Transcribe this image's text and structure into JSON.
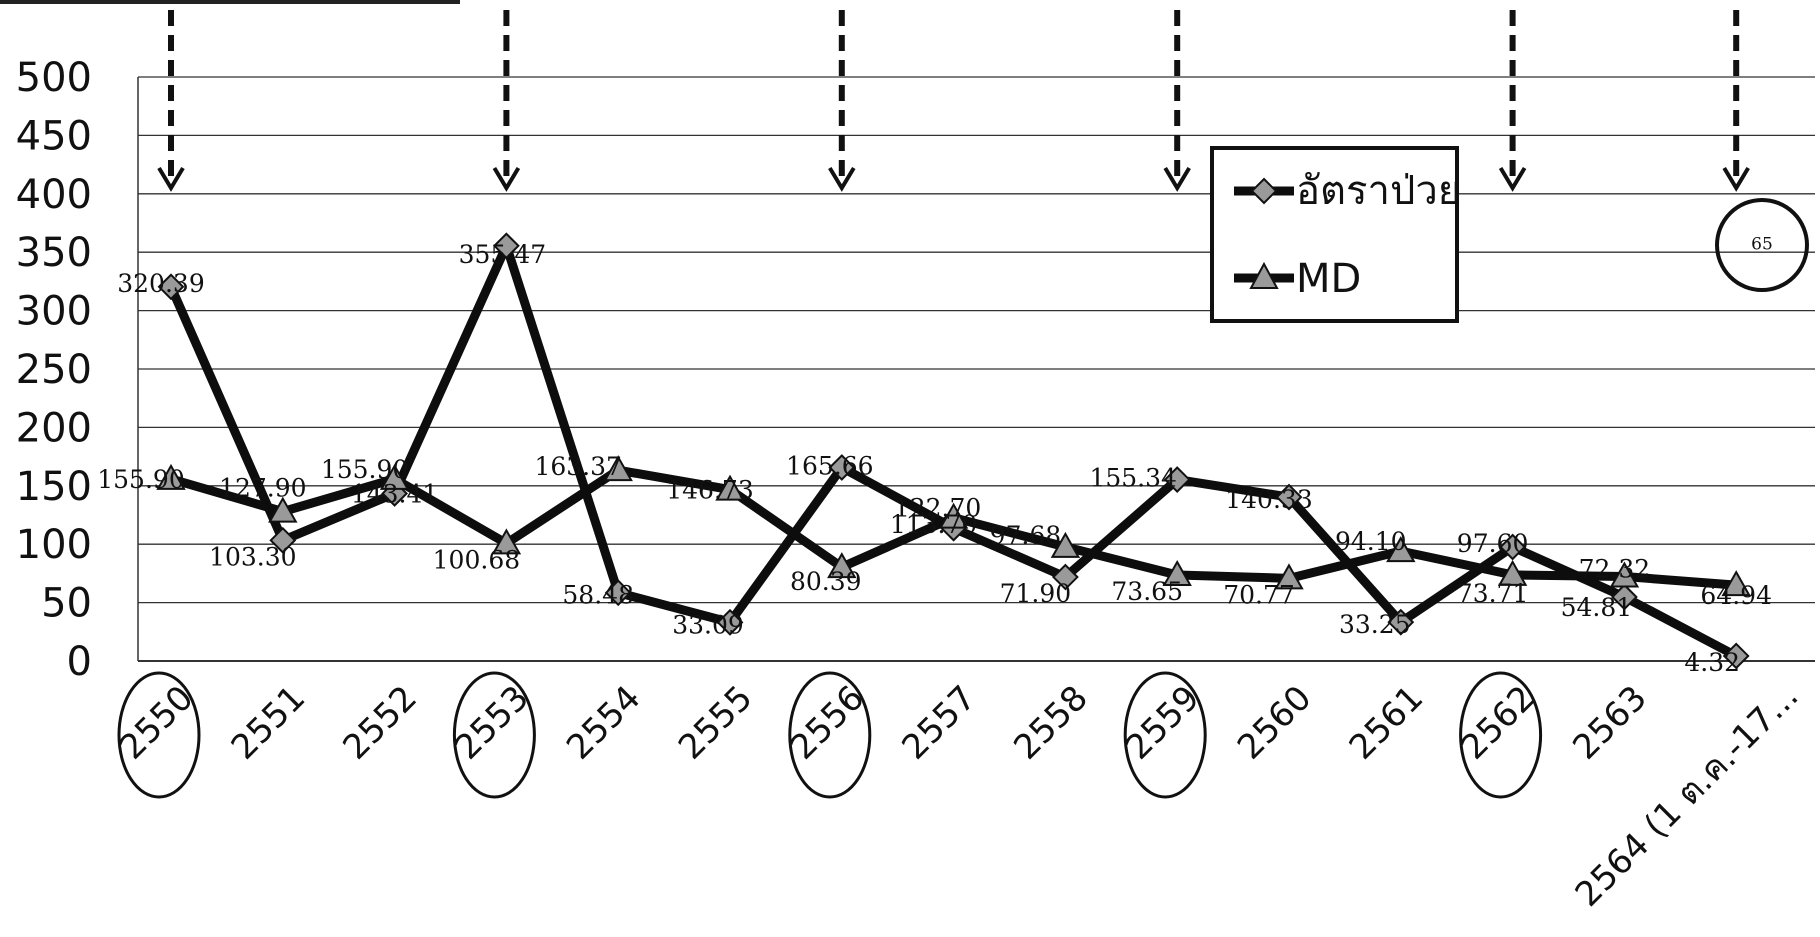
{
  "chart_data": {
    "type": "line",
    "title": "",
    "xlabel": "",
    "ylabel": "",
    "ylim": [
      0,
      500
    ],
    "yticks": [
      "500",
      "450",
      "400",
      "350",
      "300",
      "250",
      "200",
      "150",
      "100",
      "50",
      "0"
    ],
    "grid": true,
    "legend_position": "top-right",
    "categories": [
      "2550",
      "2551",
      "2552",
      "2553",
      "2554",
      "2555",
      "2556",
      "2557",
      "2558",
      "2559",
      "2560",
      "2561",
      "2562",
      "2563",
      "2564 (1 ต.ค.-17..."
    ],
    "circled_categories": [
      "2550",
      "2553",
      "2556",
      "2559",
      "2562"
    ],
    "arrow_categories": [
      "2550",
      "2553",
      "2556",
      "2559",
      "2562",
      "2564 (1 ต.ค.-17..."
    ],
    "series": [
      {
        "name": "อัตราป่วย",
        "marker": "diamond",
        "values": [
          320.39,
          103.3,
          143.41,
          355.47,
          58.48,
          33.09,
          165.66,
          113.7,
          71.9,
          155.34,
          140.33,
          33.25,
          97.6,
          54.81,
          4.32
        ],
        "labels": [
          "320.39",
          "103.30",
          "143.41",
          "355.47",
          "58.48",
          "33.09",
          "165.66",
          "113.70",
          "71.90",
          "155.34",
          "140.33",
          "33.25",
          "97.60",
          "54.81",
          "4.32"
        ]
      },
      {
        "name": "MD",
        "marker": "triangle",
        "values": [
          155.9,
          127.9,
          155.9,
          100.68,
          163.37,
          146.73,
          80.39,
          122.7,
          97.68,
          73.65,
          70.77,
          94.1,
          73.71,
          72.32,
          64.94
        ],
        "labels": [
          "155.90",
          "127.90",
          "155.90",
          "100.68",
          "163.37",
          "146.73",
          "80.39",
          "122.70",
          "97.68",
          "73.65",
          "70.77",
          "94.10",
          "73.71",
          "72.32",
          "64.94"
        ]
      }
    ],
    "annotation": "65"
  },
  "colors": {
    "line": "#0d0d0d",
    "marker_fill": "#9a9a9a",
    "grid": "#333333",
    "background": "#ffffff"
  }
}
